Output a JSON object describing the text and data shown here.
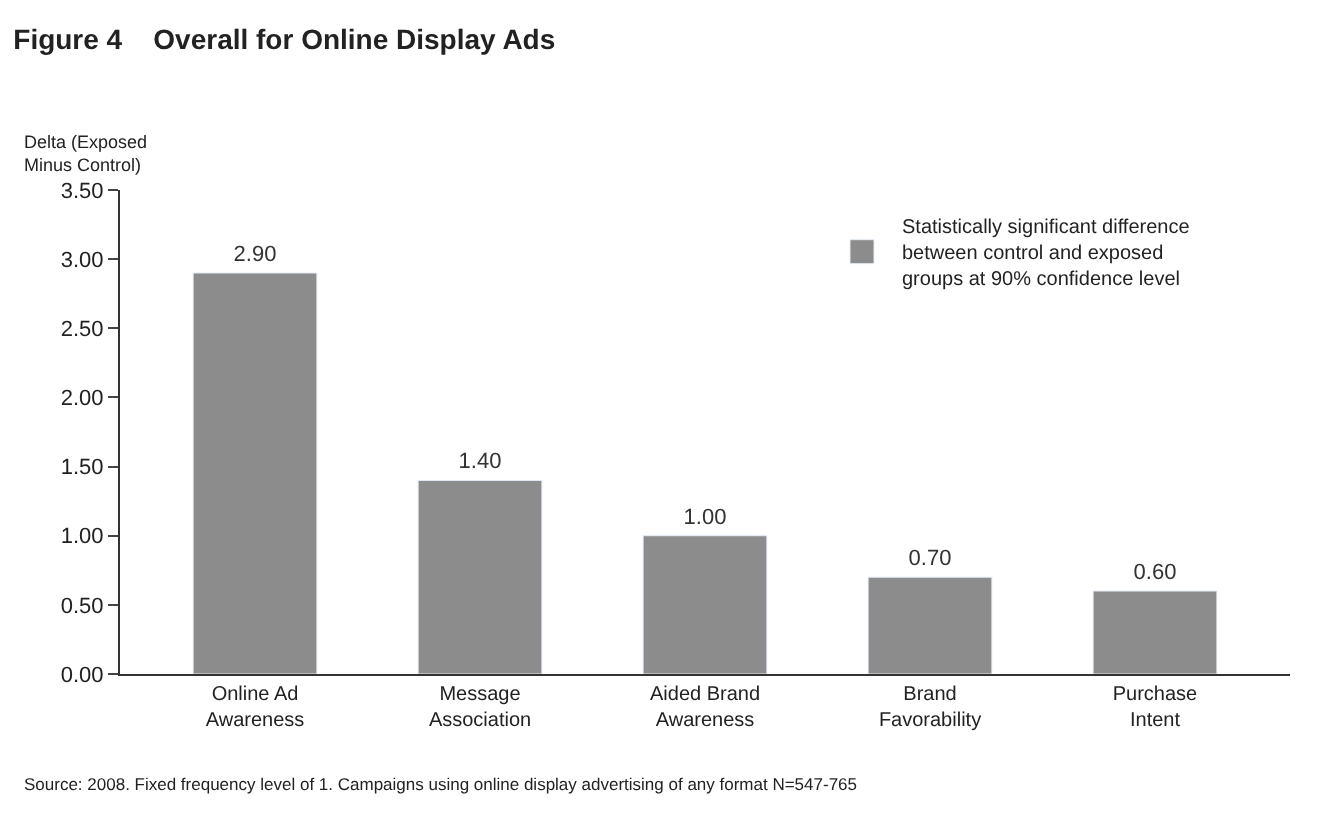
{
  "chart_data": {
    "type": "bar",
    "title": "Figure 4    Overall for Online Display Ads",
    "ylabel": "Delta (Exposed\nMinus Control)",
    "categories": [
      "Online Ad\nAwareness",
      "Message\nAssociation",
      "Aided Brand\nAwareness",
      "Brand\nFavorability",
      "Purchase\nIntent"
    ],
    "series": [
      {
        "name": "Statistically significant difference\nbetween control and exposed\ngroups at 90% confidence level",
        "color": "#8c8c8c",
        "values": [
          2.9,
          1.4,
          1.0,
          0.7,
          0.6
        ]
      }
    ],
    "value_labels": [
      "2.90",
      "1.40",
      "1.00",
      "0.70",
      "0.60"
    ],
    "ylim": [
      0,
      3.5
    ],
    "yticks": [
      {
        "value": 0,
        "label": "0.00"
      },
      {
        "value": 0.5,
        "label": "0.50"
      },
      {
        "value": 1,
        "label": "1.00"
      },
      {
        "value": 1.5,
        "label": "1.50"
      },
      {
        "value": 2,
        "label": "2.00"
      },
      {
        "value": 2.5,
        "label": "2.50"
      },
      {
        "value": 3,
        "label": "3.00"
      },
      {
        "value": 3.5,
        "label": "3.50"
      }
    ],
    "legend": "top right",
    "annotations": [
      "Source: 2008. Fixed frequency level of 1. Campaigns using online display advertising of any format N=547-765"
    ]
  }
}
